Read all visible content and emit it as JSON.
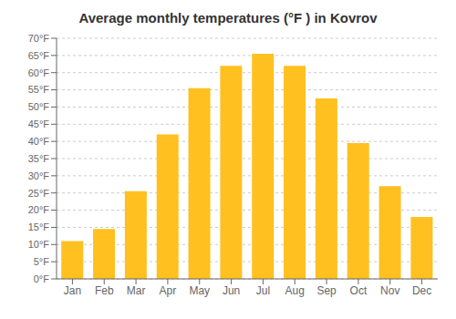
{
  "chart_data": {
    "type": "bar",
    "title": "Average monthly temperatures (°F ) in Kovrov",
    "categories": [
      "Jan",
      "Feb",
      "Mar",
      "Apr",
      "May",
      "Jun",
      "Jul",
      "Aug",
      "Sep",
      "Oct",
      "Nov",
      "Dec"
    ],
    "values": [
      11,
      14.5,
      25.5,
      42,
      55.5,
      62,
      65.5,
      62,
      52.5,
      39.5,
      27,
      18
    ],
    "color": "#FFC020",
    "ylim": [
      0,
      70
    ],
    "yticks": [
      {
        "value": 0,
        "label": "0°F"
      },
      {
        "value": 5,
        "label": "5°F"
      },
      {
        "value": 10,
        "label": "10°F"
      },
      {
        "value": 15,
        "label": "15°F"
      },
      {
        "value": 20,
        "label": "20°F"
      },
      {
        "value": 25,
        "label": "25°F"
      },
      {
        "value": 30,
        "label": "30°F"
      },
      {
        "value": 35,
        "label": "35°F"
      },
      {
        "value": 40,
        "label": "40°F"
      },
      {
        "value": 45,
        "label": "45°F"
      },
      {
        "value": 50,
        "label": "50°F"
      },
      {
        "value": 55,
        "label": "55°F"
      },
      {
        "value": 60,
        "label": "60°F"
      },
      {
        "value": 65,
        "label": "65°F"
      },
      {
        "value": 70,
        "label": "70°F"
      }
    ],
    "grid": true
  }
}
